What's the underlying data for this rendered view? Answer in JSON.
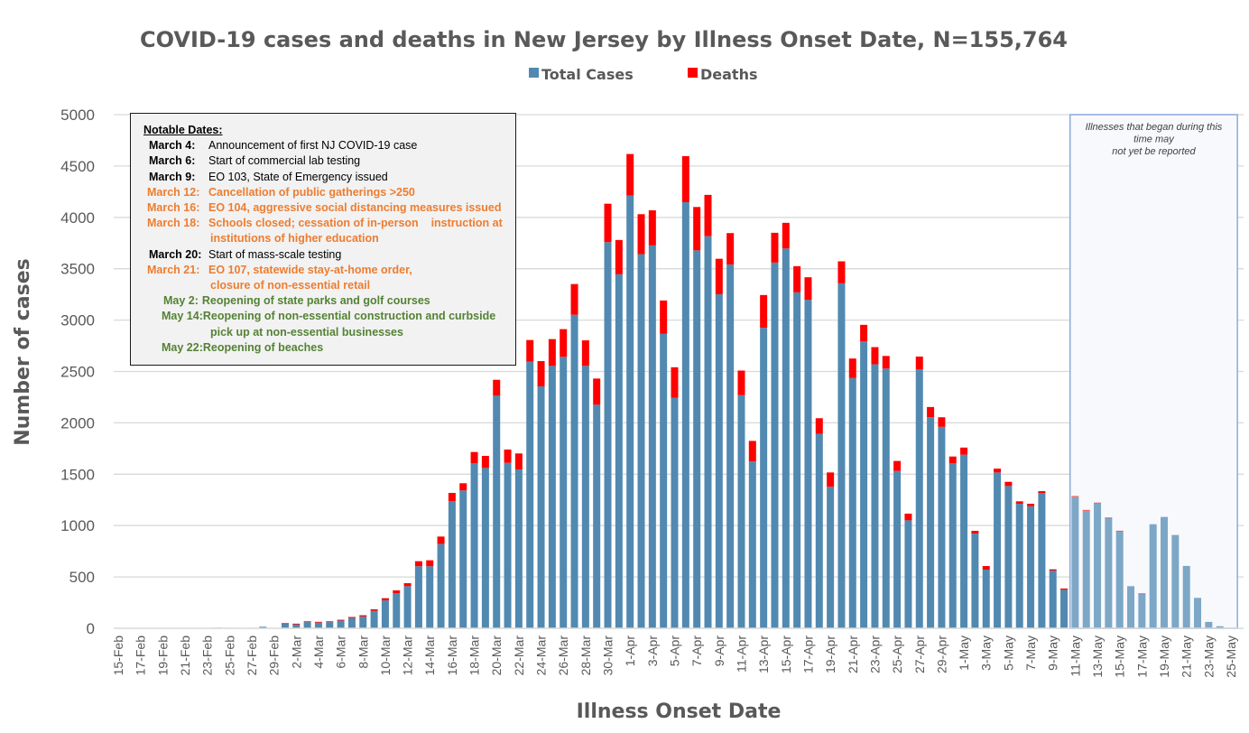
{
  "chart_data": {
    "type": "bar",
    "stacked": true,
    "title": "COVID-19 cases and deaths in New Jersey by Illness Onset Date, N=155,764",
    "xlabel": "Illness Onset Date",
    "ylabel": "Number of cases",
    "ylim": [
      0,
      5000
    ],
    "yticks": [
      0,
      500,
      1000,
      1500,
      2000,
      2500,
      3000,
      3500,
      4000,
      4500,
      5000
    ],
    "grid": true,
    "legend": {
      "placement": "top-center",
      "entries": [
        "Total Cases",
        "Deaths"
      ]
    },
    "colors": {
      "cases": "#5189B1",
      "cases_shaded": "#7DA7C6",
      "deaths": "#FF0000",
      "grid": "#D9D9D9",
      "shade_border": "#8EA9DB",
      "shade_fill": "#F8F9FC"
    },
    "categories": [
      "15-Feb",
      "16-Feb",
      "17-Feb",
      "18-Feb",
      "19-Feb",
      "20-Feb",
      "21-Feb",
      "22-Feb",
      "23-Feb",
      "24-Feb",
      "25-Feb",
      "26-Feb",
      "27-Feb",
      "28-Feb",
      "29-Feb",
      "1-Mar",
      "2-Mar",
      "3-Mar",
      "4-Mar",
      "5-Mar",
      "6-Mar",
      "7-Mar",
      "8-Mar",
      "9-Mar",
      "10-Mar",
      "11-Mar",
      "12-Mar",
      "13-Mar",
      "14-Mar",
      "15-Mar",
      "16-Mar",
      "17-Mar",
      "18-Mar",
      "19-Mar",
      "20-Mar",
      "21-Mar",
      "22-Mar",
      "23-Mar",
      "24-Mar",
      "25-Mar",
      "26-Mar",
      "27-Mar",
      "28-Mar",
      "29-Mar",
      "30-Mar",
      "31-Mar",
      "1-Apr",
      "2-Apr",
      "3-Apr",
      "4-Apr",
      "5-Apr",
      "6-Apr",
      "7-Apr",
      "8-Apr",
      "9-Apr",
      "10-Apr",
      "11-Apr",
      "12-Apr",
      "13-Apr",
      "14-Apr",
      "15-Apr",
      "16-Apr",
      "17-Apr",
      "18-Apr",
      "19-Apr",
      "20-Apr",
      "21-Apr",
      "22-Apr",
      "23-Apr",
      "24-Apr",
      "25-Apr",
      "26-Apr",
      "27-Apr",
      "28-Apr",
      "29-Apr",
      "30-Apr",
      "1-May",
      "2-May",
      "3-May",
      "4-May",
      "5-May",
      "6-May",
      "7-May",
      "8-May",
      "9-May",
      "10-May",
      "11-May",
      "12-May",
      "13-May",
      "14-May",
      "15-May",
      "16-May",
      "17-May",
      "18-May",
      "19-May",
      "20-May",
      "21-May",
      "22-May",
      "23-May",
      "24-May",
      "25-May"
    ],
    "series": [
      {
        "name": "Total Cases",
        "values": [
          1,
          0,
          2,
          1,
          0,
          0,
          2,
          3,
          3,
          6,
          5,
          2,
          5,
          15,
          2,
          45,
          40,
          60,
          55,
          60,
          75,
          100,
          115,
          170,
          272,
          340,
          410,
          604,
          604,
          820,
          1239,
          1342,
          1605,
          1561,
          2264,
          1611,
          1547,
          2595,
          2355,
          2554,
          2642,
          3052,
          2554,
          2176,
          3759,
          3446,
          4213,
          3642,
          3727,
          2866,
          2245,
          4148,
          3679,
          3817,
          3252,
          3542,
          2269,
          1625,
          2925,
          3560,
          3697,
          3270,
          3197,
          1892,
          1377,
          3358,
          2436,
          2792,
          2570,
          2528,
          1532,
          1051,
          2522,
          2054,
          1961,
          1605,
          1690,
          922,
          571,
          1517,
          1385,
          1212,
          1188,
          1315,
          562,
          375,
          1276,
          1142,
          1218,
          1075,
          945,
          410,
          337,
          1013,
          1084,
          908,
          607,
          296,
          62,
          20,
          0
        ]
      },
      {
        "name": "Deaths",
        "values": [
          0,
          0,
          0,
          0,
          0,
          0,
          0,
          0,
          0,
          0,
          0,
          0,
          0,
          0,
          0,
          5,
          5,
          8,
          8,
          8,
          8,
          10,
          12,
          15,
          21,
          29,
          29,
          49,
          58,
          73,
          79,
          70,
          111,
          117,
          155,
          129,
          155,
          211,
          246,
          261,
          270,
          299,
          249,
          255,
          374,
          334,
          404,
          389,
          342,
          325,
          296,
          448,
          422,
          402,
          345,
          305,
          240,
          199,
          319,
          290,
          250,
          255,
          220,
          153,
          140,
          214,
          190,
          162,
          167,
          123,
          97,
          65,
          123,
          100,
          93,
          67,
          69,
          27,
          35,
          37,
          41,
          24,
          24,
          20,
          12,
          12,
          12,
          11,
          6,
          3,
          5,
          0,
          3,
          0,
          0,
          0,
          0,
          0,
          0,
          0,
          0
        ]
      }
    ],
    "x_tick_labels": [
      "15-Feb",
      "17-Feb",
      "19-Feb",
      "21-Feb",
      "23-Feb",
      "25-Feb",
      "27-Feb",
      "29-Feb",
      "2-Mar",
      "4-Mar",
      "6-Mar",
      "8-Mar",
      "10-Mar",
      "12-Mar",
      "14-Mar",
      "16-Mar",
      "18-Mar",
      "20-Mar",
      "22-Mar",
      "24-Mar",
      "26-Mar",
      "28-Mar",
      "30-Mar",
      "1-Apr",
      "3-Apr",
      "5-Apr",
      "7-Apr",
      "9-Apr",
      "11-Apr",
      "13-Apr",
      "15-Apr",
      "17-Apr",
      "19-Apr",
      "21-Apr",
      "23-Apr",
      "25-Apr",
      "27-Apr",
      "29-Apr",
      "1-May",
      "3-May",
      "5-May",
      "7-May",
      "9-May",
      "11-May",
      "13-May",
      "15-May",
      "17-May",
      "19-May",
      "21-May",
      "23-May",
      "25-May"
    ],
    "shaded_region": {
      "start": "11-May",
      "end": "25-May",
      "note": [
        "Illnesses that began during this",
        "time may",
        "not yet be reported"
      ]
    }
  },
  "notable_dates": {
    "title": "Notable Dates:",
    "events": [
      {
        "date": "March 4:",
        "text": "Announcement of first NJ COVID-19 case",
        "style": "black"
      },
      {
        "date": "March 6:",
        "text": "Start of commercial lab testing",
        "style": "black"
      },
      {
        "date": "March 9:",
        "text": "EO 103, State of Emergency issued",
        "style": "black"
      },
      {
        "date": "March 12:",
        "text": "Cancellation of public gatherings >250",
        "style": "orange"
      },
      {
        "date": "March 16:",
        "text": "EO 104, aggressive social distancing measures issued",
        "style": "orange"
      },
      {
        "date": "March 18:",
        "text": "Schools closed; cessation of in-person    instruction at",
        "cont": "institutions of higher education",
        "style": "orange"
      },
      {
        "date": "March 20:",
        "text": "Start of mass-scale testing",
        "style": "black"
      },
      {
        "date": "March 21:",
        "text": "EO 107, statewide stay-at-home order,",
        "cont": "closure of non-essential retail",
        "style": "orange"
      },
      {
        "date": "May 2:",
        "text": "Reopening of state parks and golf courses",
        "style": "green"
      },
      {
        "date": "May 14:",
        "text": "Reopening of non-essential construction and curbside",
        "cont": "pick up at non-essential businesses",
        "style": "green"
      },
      {
        "date": "May 22:",
        "text": "Reopening of beaches",
        "style": "green"
      }
    ]
  }
}
